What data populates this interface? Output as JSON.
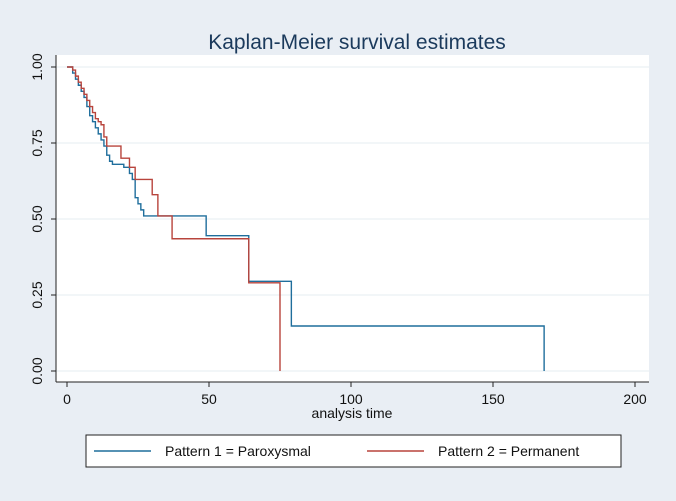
{
  "chart_data": {
    "type": "line",
    "title": "Kaplan-Meier survival estimates",
    "xlabel": "analysis time",
    "ylabel": "",
    "xlim": [
      0,
      200
    ],
    "ylim": [
      0,
      1
    ],
    "x_ticks": [
      0,
      50,
      100,
      150,
      200
    ],
    "y_ticks": [
      0,
      0.25,
      0.5,
      0.75,
      1
    ],
    "x_tick_labels": [
      "0",
      "50",
      "100",
      "150",
      "200"
    ],
    "y_tick_labels": [
      "0.00",
      "0.25",
      "0.50",
      "0.75",
      "1.00"
    ],
    "grid": true,
    "legend_position": "bottom",
    "series": [
      {
        "name": "Pattern 1 = Paroxysmal",
        "color": "#1f6e9c",
        "step": true,
        "x": [
          0,
          2,
          3,
          4,
          5,
          6,
          7,
          8,
          9,
          10,
          11,
          12,
          13,
          14,
          15,
          16,
          20,
          21,
          22,
          23,
          24,
          25,
          26,
          27,
          28,
          49,
          64,
          79,
          168,
          168
        ],
        "y": [
          1.0,
          0.98,
          0.96,
          0.94,
          0.92,
          0.9,
          0.87,
          0.84,
          0.82,
          0.8,
          0.78,
          0.76,
          0.74,
          0.71,
          0.69,
          0.68,
          0.67,
          0.67,
          0.65,
          0.63,
          0.57,
          0.55,
          0.53,
          0.51,
          0.51,
          0.445,
          0.295,
          0.148,
          0.148,
          0.0
        ]
      },
      {
        "name": "Pattern 2 = Permanent",
        "color": "#b8443c",
        "step": true,
        "x": [
          0,
          2,
          3,
          4,
          5,
          6,
          7,
          8,
          9,
          10,
          11,
          12,
          13,
          14,
          15,
          19,
          22,
          24,
          30,
          32,
          37,
          64,
          75,
          75
        ],
        "y": [
          1.0,
          0.99,
          0.97,
          0.95,
          0.93,
          0.91,
          0.89,
          0.87,
          0.85,
          0.83,
          0.82,
          0.81,
          0.77,
          0.74,
          0.74,
          0.7,
          0.67,
          0.63,
          0.58,
          0.51,
          0.435,
          0.29,
          0.29,
          0.0
        ]
      }
    ]
  }
}
